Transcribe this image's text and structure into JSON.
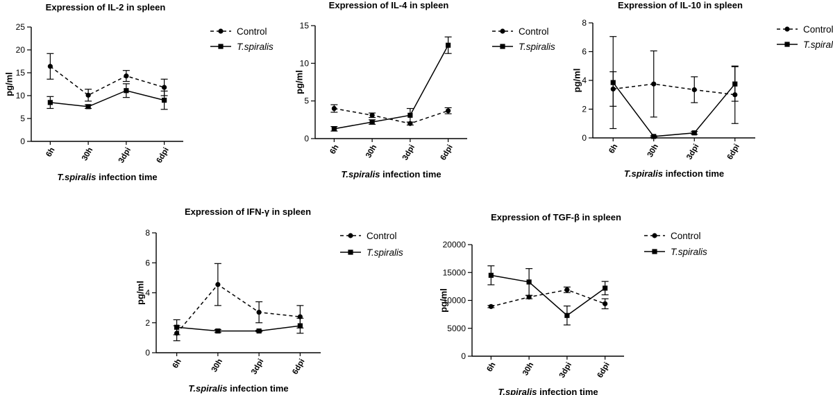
{
  "figure": {
    "description": "Expression of cytokines in spleen"
  },
  "chart_data": [
    {
      "type": "line",
      "title": "Expression of IL-2 in spleen",
      "ylabel": "pg/ml",
      "xlabel_italic": "T.spiralis",
      "xlabel_rest": " infection time",
      "categories": [
        "6h",
        "30h",
        "3dpi",
        "6dpi"
      ],
      "ylim": [
        0,
        25
      ],
      "yticks": [
        0,
        5,
        10,
        15,
        20,
        25
      ],
      "series": [
        {
          "name": "Control",
          "style": "dashed",
          "marker": "circle",
          "values": [
            16.4,
            10.1,
            14.3,
            11.8
          ],
          "errors": [
            2.8,
            1.3,
            1.2,
            1.8
          ]
        },
        {
          "name": "T.spiralis",
          "style": "solid",
          "marker": "square",
          "values": [
            8.5,
            7.6,
            11.1,
            9.0
          ],
          "errors": [
            1.3,
            0.4,
            1.5,
            2.0
          ]
        }
      ]
    },
    {
      "type": "line",
      "title": "Expression of IL-4 in spleen",
      "ylabel": "pg/ml",
      "xlabel_italic": "T.spiralis",
      "xlabel_rest": " infection time",
      "categories": [
        "6h",
        "30h",
        "3dpi",
        "6dpi"
      ],
      "ylim": [
        0,
        15
      ],
      "yticks": [
        0,
        5,
        10,
        15
      ],
      "series": [
        {
          "name": "Control",
          "style": "dashed",
          "marker": "circle",
          "values": [
            4.0,
            3.1,
            2.0,
            3.7
          ],
          "errors": [
            0.5,
            0.3,
            0.2,
            0.4
          ]
        },
        {
          "name": "T.spiralis",
          "style": "solid",
          "marker": "square",
          "values": [
            1.3,
            2.2,
            3.1,
            12.4
          ],
          "errors": [
            0.3,
            0.3,
            0.9,
            1.1
          ]
        }
      ]
    },
    {
      "type": "line",
      "title": "Expression of IL-10 in spleen",
      "ylabel": "pg/ml",
      "xlabel_italic": "T.spiralis",
      "xlabel_rest": " infection time",
      "categories": [
        "6h",
        "30h",
        "3dpi",
        "6dpi"
      ],
      "ylim": [
        0,
        8
      ],
      "yticks": [
        0,
        2,
        4,
        6,
        8
      ],
      "series": [
        {
          "name": "Control",
          "style": "dashed",
          "marker": "circle",
          "values": [
            3.4,
            3.75,
            3.35,
            3.0
          ],
          "errors": [
            1.2,
            2.3,
            0.9,
            2.0
          ]
        },
        {
          "name": "T.spiralis",
          "style": "solid",
          "marker": "square",
          "values": [
            3.85,
            0.1,
            0.35,
            3.75
          ],
          "errors": [
            3.2,
            0.05,
            0.1,
            1.2
          ]
        }
      ]
    },
    {
      "type": "line",
      "title": "Expression of IFN-γ in spleen",
      "ylabel": "pg/ml",
      "xlabel_italic": "T.spiralis",
      "xlabel_rest": " infection time",
      "categories": [
        "6h",
        "30h",
        "3dpi",
        "6dpi"
      ],
      "ylim": [
        0,
        8
      ],
      "yticks": [
        0,
        2,
        4,
        6,
        8
      ],
      "series": [
        {
          "name": "Control",
          "style": "dashed",
          "marker": "circle",
          "values": [
            1.3,
            4.55,
            2.7,
            2.4
          ],
          "errors": [
            0.5,
            1.4,
            0.7,
            0.75
          ]
        },
        {
          "name": "T.spiralis",
          "style": "solid",
          "marker": "square",
          "values": [
            1.7,
            1.45,
            1.45,
            1.8
          ],
          "errors": [
            0.5,
            0.1,
            0.05,
            0.5
          ]
        }
      ]
    },
    {
      "type": "line",
      "title": "Expression of TGF-β in spleen",
      "ylabel": "pg/ml",
      "xlabel_italic": "T.spiralis",
      "xlabel_rest": " infection time",
      "categories": [
        "6h",
        "30h",
        "3dpi",
        "6dpi"
      ],
      "ylim": [
        0,
        20000
      ],
      "yticks": [
        0,
        5000,
        10000,
        15000,
        20000
      ],
      "series": [
        {
          "name": "Control",
          "style": "dashed",
          "marker": "circle",
          "values": [
            8900,
            10600,
            11900,
            9400
          ],
          "errors": [
            200,
            300,
            500,
            900
          ]
        },
        {
          "name": "T.spiralis",
          "style": "solid",
          "marker": "square",
          "values": [
            14500,
            13300,
            7300,
            12200
          ],
          "errors": [
            1700,
            2400,
            1700,
            1200
          ]
        }
      ]
    }
  ]
}
